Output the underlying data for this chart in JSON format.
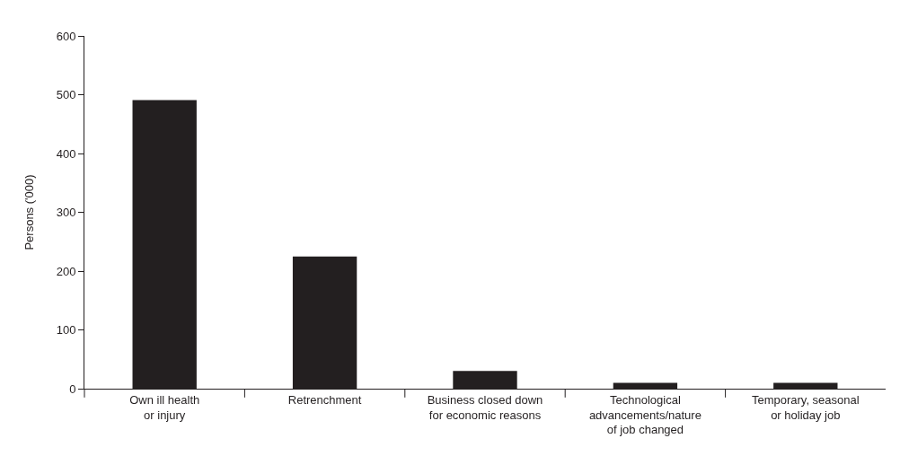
{
  "chart_data": {
    "type": "bar",
    "ylabel": "Persons ('000)",
    "categories": [
      "Own ill health\nor injury",
      "Retrenchment",
      "Business closed down\nfor economic reasons",
      "Technological\nadvancements/nature\nof job changed",
      "Temporary, seasonal\nor holiday job"
    ],
    "values": [
      491,
      225,
      30,
      10,
      10
    ],
    "color": "#231f20",
    "ylim": [
      0,
      600
    ],
    "yticks": [
      0,
      100,
      200,
      300,
      400,
      500,
      600
    ]
  }
}
